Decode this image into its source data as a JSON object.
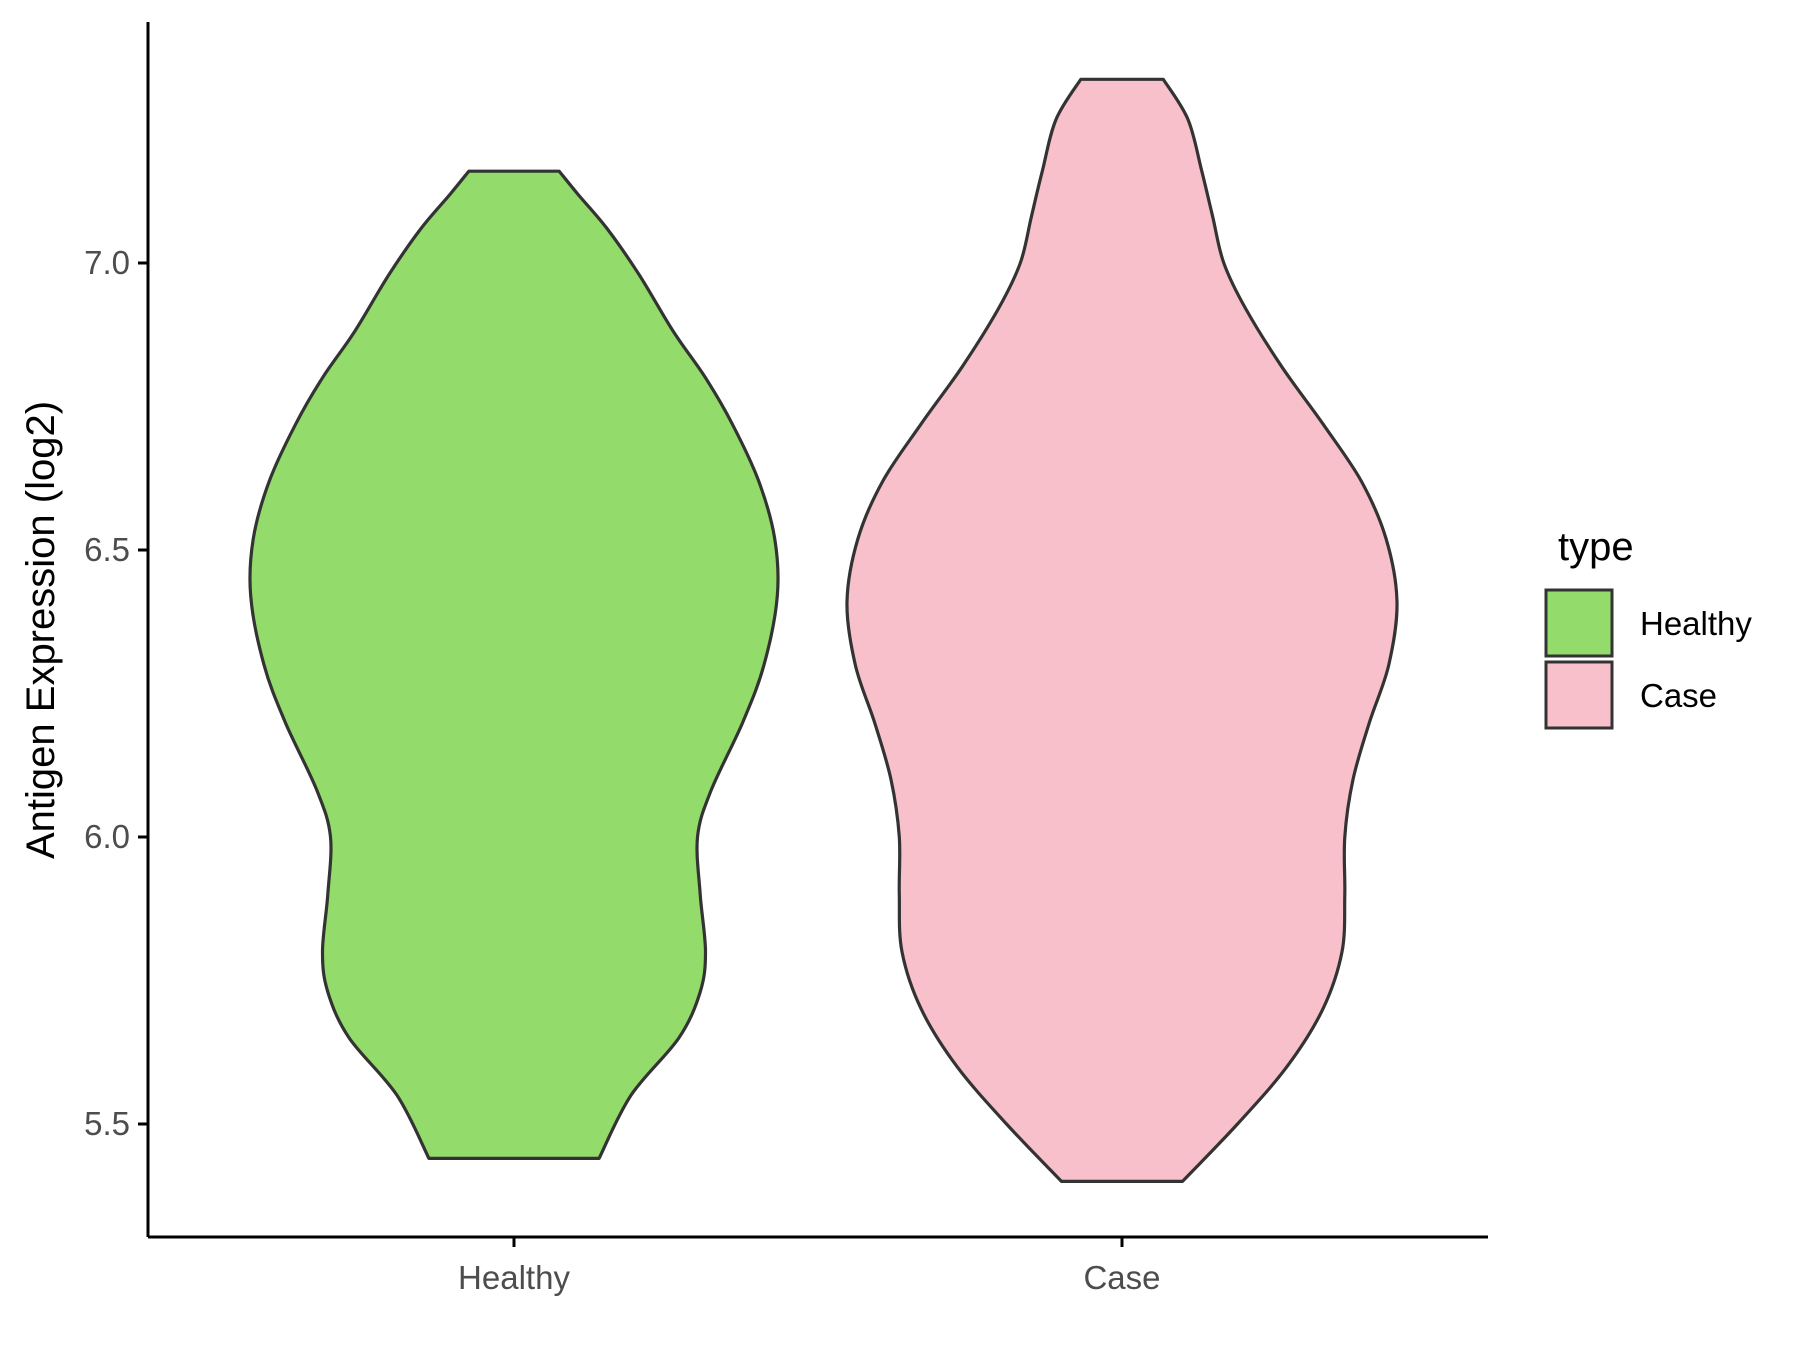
{
  "chart_data": {
    "type": "violin",
    "title": "",
    "xlabel": "",
    "ylabel": "Antigen Expression (log2)",
    "categories": [
      "Healthy",
      "Case"
    ],
    "ylim": [
      5.3,
      7.4
    ],
    "yticks": [
      "5.5",
      "6.0",
      "6.5",
      "7.0"
    ],
    "grid": false,
    "legend": {
      "title": "type",
      "position": "right",
      "entries": [
        {
          "label": "Healthy",
          "color": "#93dc6b"
        },
        {
          "label": "Case",
          "color": "#f7c0cb"
        }
      ]
    },
    "series": [
      {
        "category": "Healthy",
        "color": "#93dc6b",
        "min": 5.44,
        "max": 7.16,
        "density_profile": [
          [
            5.44,
            0.32
          ],
          [
            5.55,
            0.44
          ],
          [
            5.65,
            0.62
          ],
          [
            5.73,
            0.7
          ],
          [
            5.8,
            0.72
          ],
          [
            5.9,
            0.7
          ],
          [
            6.0,
            0.69
          ],
          [
            6.08,
            0.74
          ],
          [
            6.2,
            0.86
          ],
          [
            6.3,
            0.94
          ],
          [
            6.42,
            0.99
          ],
          [
            6.52,
            0.98
          ],
          [
            6.62,
            0.92
          ],
          [
            6.72,
            0.82
          ],
          [
            6.8,
            0.72
          ],
          [
            6.88,
            0.6
          ],
          [
            6.98,
            0.47
          ],
          [
            7.06,
            0.35
          ],
          [
            7.12,
            0.24
          ],
          [
            7.16,
            0.17
          ]
        ]
      },
      {
        "category": "Case",
        "color": "#f7c0cb",
        "min": 5.4,
        "max": 7.32,
        "density_profile": [
          [
            5.4,
            0.22
          ],
          [
            5.5,
            0.42
          ],
          [
            5.6,
            0.6
          ],
          [
            5.7,
            0.73
          ],
          [
            5.8,
            0.8
          ],
          [
            5.9,
            0.81
          ],
          [
            6.0,
            0.81
          ],
          [
            6.1,
            0.84
          ],
          [
            6.2,
            0.9
          ],
          [
            6.3,
            0.97
          ],
          [
            6.41,
            1.0
          ],
          [
            6.52,
            0.96
          ],
          [
            6.62,
            0.87
          ],
          [
            6.72,
            0.73
          ],
          [
            6.82,
            0.58
          ],
          [
            6.92,
            0.45
          ],
          [
            7.0,
            0.37
          ],
          [
            7.08,
            0.33
          ],
          [
            7.16,
            0.29
          ],
          [
            7.25,
            0.24
          ],
          [
            7.32,
            0.15
          ]
        ]
      }
    ]
  }
}
